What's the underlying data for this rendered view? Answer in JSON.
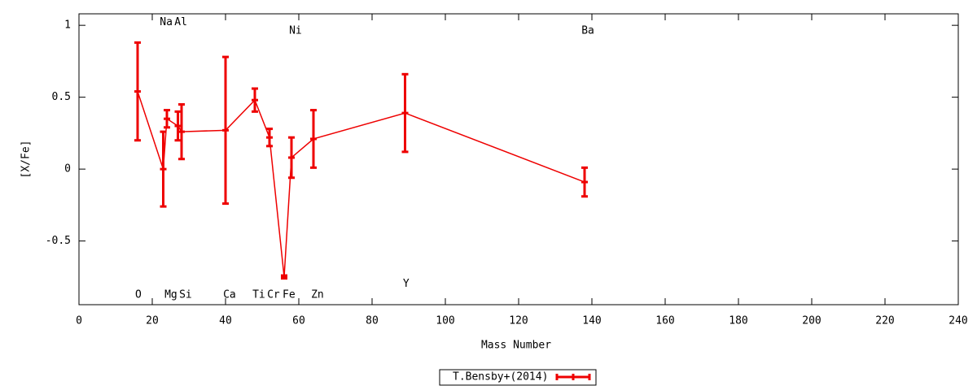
{
  "chart_data": {
    "type": "line",
    "xlabel": "Mass Number",
    "ylabel": "[X/Fe]",
    "xlim": [
      0,
      240
    ],
    "ylim": [
      -0.943,
      1.08
    ],
    "xticks": [
      0,
      20,
      40,
      60,
      80,
      100,
      120,
      140,
      160,
      180,
      200,
      220,
      240
    ],
    "yticks": [
      1,
      0.5,
      0,
      -0.5
    ],
    "grid": false,
    "legend": "bottom",
    "series": [
      {
        "name": "T.Bensby+(2014)",
        "color": "#ee0000",
        "x": [
          16,
          23,
          24,
          27,
          28,
          40,
          48,
          52,
          56,
          58,
          64,
          89,
          138
        ],
        "values": [
          0.54,
          0.0,
          0.35,
          0.3,
          0.26,
          0.27,
          0.48,
          0.22,
          -0.75,
          0.08,
          0.21,
          0.39,
          -0.09
        ],
        "errors": [
          0.34,
          0.26,
          0.06,
          0.1,
          0.19,
          0.51,
          0.08,
          0.06,
          0.01,
          0.14,
          0.2,
          0.27,
          0.1
        ]
      }
    ],
    "annotations": [
      {
        "text": "O",
        "x": 16.2,
        "y": -0.876
      },
      {
        "text": "Na",
        "x": 23.8,
        "y": 1.02
      },
      {
        "text": "Mg",
        "x": 25.1,
        "y": -0.876
      },
      {
        "text": "Al",
        "x": 27.8,
        "y": 1.02
      },
      {
        "text": "Si",
        "x": 29.1,
        "y": -0.876
      },
      {
        "text": "Ca",
        "x": 41.1,
        "y": -0.876
      },
      {
        "text": "Ti",
        "x": 49.1,
        "y": -0.876
      },
      {
        "text": "Cr",
        "x": 53.1,
        "y": -0.876
      },
      {
        "text": "Fe",
        "x": 57.3,
        "y": -0.876
      },
      {
        "text": "Ni",
        "x": 59.1,
        "y": 0.96
      },
      {
        "text": "Zn",
        "x": 65.1,
        "y": -0.876
      },
      {
        "text": "Y",
        "x": 89.3,
        "y": -0.8
      },
      {
        "text": "Ba",
        "x": 138.9,
        "y": 0.96
      }
    ]
  }
}
